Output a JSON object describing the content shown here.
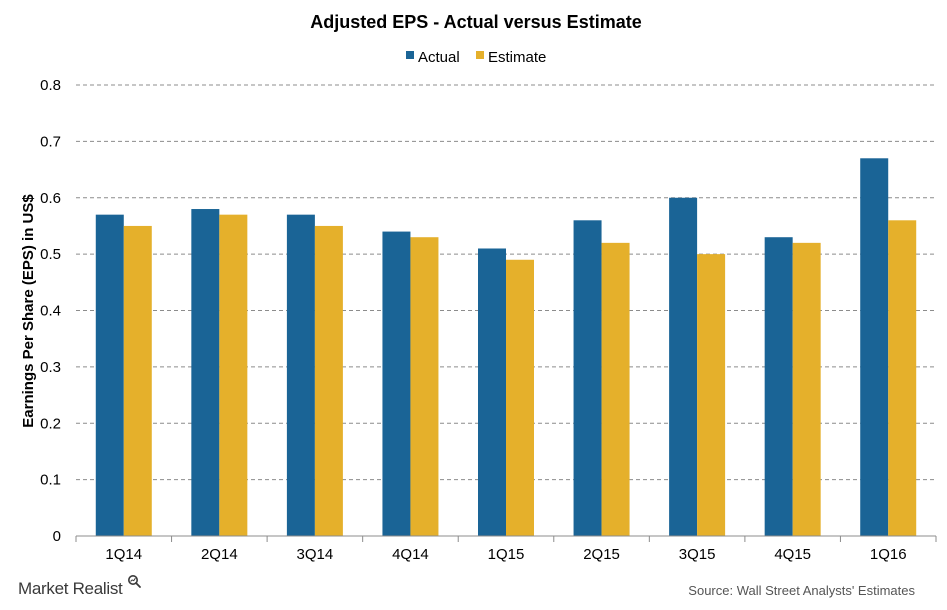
{
  "chart_data": {
    "type": "bar",
    "title": "Adjusted EPS - Actual versus Estimate",
    "ylabel": "Earnings Per Share (EPS) in US$",
    "xlabel": "",
    "categories": [
      "1Q14",
      "2Q14",
      "3Q14",
      "4Q14",
      "1Q15",
      "2Q15",
      "3Q15",
      "4Q15",
      "1Q16"
    ],
    "series": [
      {
        "name": "Actual",
        "color": "#1a6496",
        "values": [
          0.57,
          0.58,
          0.57,
          0.54,
          0.51,
          0.56,
          0.6,
          0.53,
          0.67
        ]
      },
      {
        "name": "Estimate",
        "color": "#e5b02b",
        "values": [
          0.55,
          0.57,
          0.55,
          0.53,
          0.49,
          0.52,
          0.5,
          0.52,
          0.56
        ]
      }
    ],
    "yticks": [
      "0",
      "0.1",
      "0.2",
      "0.3",
      "0.4",
      "0.5",
      "0.6",
      "0.7",
      "0.8"
    ],
    "ylim": [
      0,
      0.8
    ],
    "grid": true,
    "legend_position": "top-center"
  },
  "footer": {
    "brand": "Market Realist",
    "brand_icon": "magnifier-icon",
    "source": "Source: Wall Street Analysts' Estimates"
  }
}
